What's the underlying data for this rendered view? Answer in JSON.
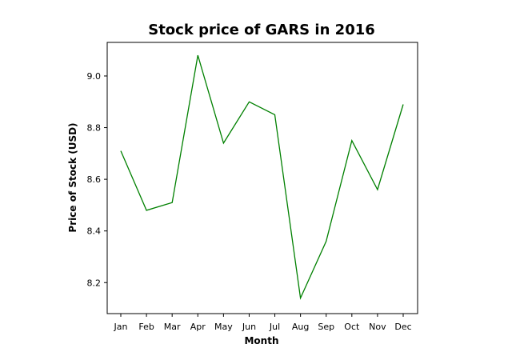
{
  "chart_data": {
    "type": "line",
    "title": "Stock price of GARS in 2016",
    "xlabel": "Month",
    "ylabel": "Price of Stock (USD)",
    "categories": [
      "Jan",
      "Feb",
      "Mar",
      "Apr",
      "May",
      "Jun",
      "Jul",
      "Aug",
      "Sep",
      "Oct",
      "Nov",
      "Dec"
    ],
    "series": [
      {
        "values": [
          8.71,
          8.48,
          8.51,
          9.08,
          8.74,
          8.9,
          8.85,
          8.14,
          8.36,
          8.75,
          8.56,
          8.89
        ],
        "color": "#008000"
      }
    ],
    "ylim": [
      8.08,
      9.13
    ],
    "yticks": [
      8.2,
      8.4,
      8.6,
      8.8,
      9.0
    ],
    "ytick_labels": [
      "8.2",
      "8.4",
      "8.6",
      "8.8",
      "9.0"
    ],
    "grid": false,
    "legend": "none"
  }
}
